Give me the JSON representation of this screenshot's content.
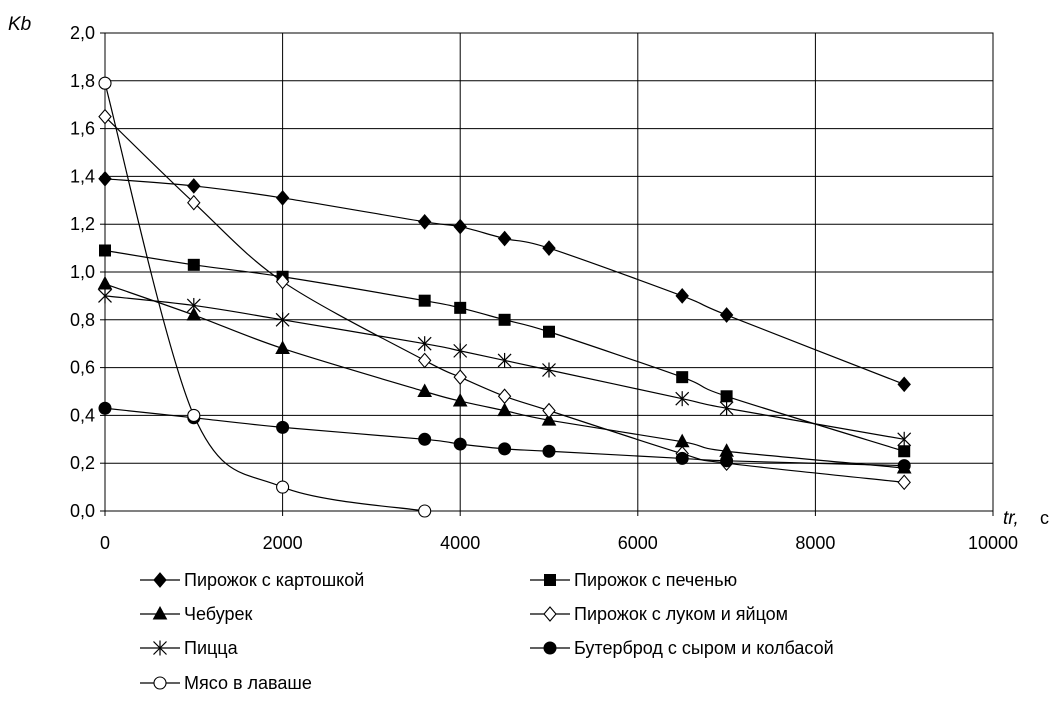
{
  "chart_data": {
    "type": "line",
    "title": "",
    "ylabel": "Kb",
    "xlabel": "tr,",
    "xunit": "с",
    "xlim": [
      0,
      10000
    ],
    "ylim": [
      0,
      2.0
    ],
    "xticks": [
      0,
      2000,
      4000,
      6000,
      8000,
      10000
    ],
    "xtick_labels": [
      "0",
      "2000",
      "4000",
      "6000",
      "8000",
      "10000"
    ],
    "yticks": [
      0,
      0.2,
      0.4,
      0.6,
      0.8,
      1.0,
      1.2,
      1.4,
      1.6,
      1.8,
      2.0
    ],
    "ytick_labels": [
      "0,0",
      "0,2",
      "0,4",
      "0,6",
      "0,8",
      "1,0",
      "1,2",
      "1,4",
      "1,6",
      "1,8",
      "2,0"
    ],
    "grid": true,
    "legend_position": "bottom",
    "series": [
      {
        "name": "Пирожок с картошкой",
        "marker": "diamond-filled",
        "x": [
          0,
          1000,
          2000,
          3600,
          4000,
          4500,
          5000,
          6500,
          7000,
          9000
        ],
        "y": [
          1.39,
          1.36,
          1.31,
          1.21,
          1.19,
          1.14,
          1.1,
          0.9,
          0.82,
          0.53
        ]
      },
      {
        "name": "Пирожок с печенью",
        "marker": "square-filled",
        "x": [
          0,
          1000,
          2000,
          3600,
          4000,
          4500,
          5000,
          6500,
          7000,
          9000
        ],
        "y": [
          1.09,
          1.03,
          0.98,
          0.88,
          0.85,
          0.8,
          0.75,
          0.56,
          0.48,
          0.25
        ]
      },
      {
        "name": "Чебурек",
        "marker": "triangle-filled",
        "x": [
          0,
          1000,
          2000,
          3600,
          4000,
          4500,
          5000,
          6500,
          7000,
          9000
        ],
        "y": [
          0.95,
          0.82,
          0.68,
          0.5,
          0.46,
          0.42,
          0.38,
          0.29,
          0.25,
          0.18
        ]
      },
      {
        "name": "Пирожок с луком и яйцом",
        "marker": "diamond-open",
        "x": [
          0,
          1000,
          2000,
          3600,
          4000,
          4500,
          5000,
          6500,
          7000,
          9000
        ],
        "y": [
          1.65,
          1.29,
          0.96,
          0.63,
          0.56,
          0.48,
          0.42,
          0.24,
          0.2,
          0.12
        ]
      },
      {
        "name": "Пицца",
        "marker": "asterisk",
        "x": [
          0,
          1000,
          2000,
          3600,
          4000,
          4500,
          5000,
          6500,
          7000,
          9000
        ],
        "y": [
          0.9,
          0.86,
          0.8,
          0.7,
          0.67,
          0.63,
          0.59,
          0.47,
          0.43,
          0.3
        ]
      },
      {
        "name": "Бутерброд с сыром и колбасой",
        "marker": "circle-filled",
        "x": [
          0,
          1000,
          2000,
          3600,
          4000,
          4500,
          5000,
          6500,
          7000,
          9000
        ],
        "y": [
          0.43,
          0.39,
          0.35,
          0.3,
          0.28,
          0.26,
          0.25,
          0.22,
          0.21,
          0.19
        ]
      },
      {
        "name": "Мясо в лаваше",
        "marker": "circle-open",
        "x": [
          0,
          1000,
          2000,
          3600
        ],
        "y": [
          1.79,
          0.4,
          0.1,
          0.0
        ]
      }
    ]
  }
}
